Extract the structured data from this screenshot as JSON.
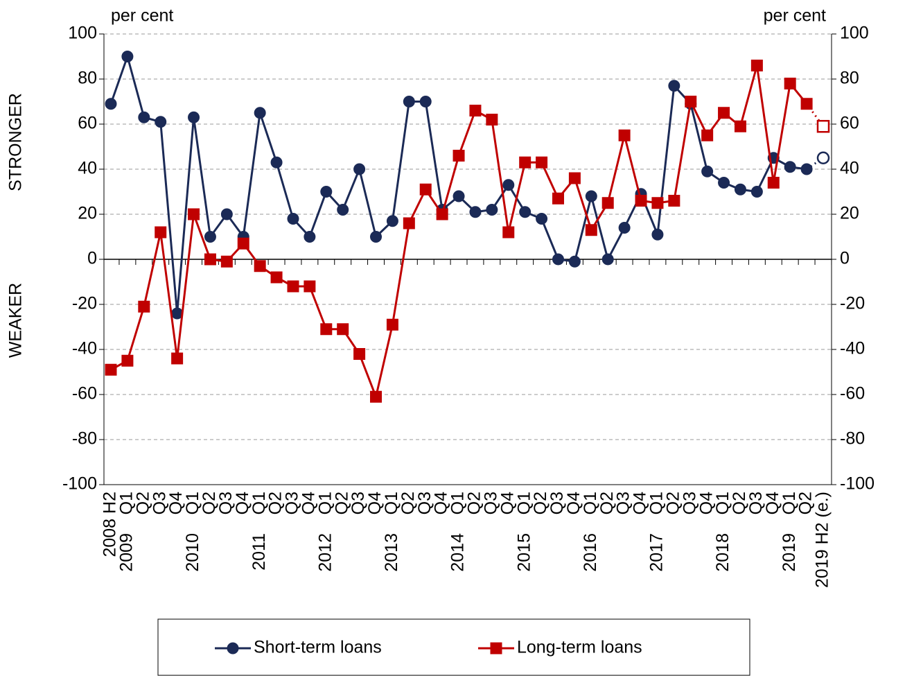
{
  "chart_data": {
    "type": "line",
    "y_label_upper": "STRONGER",
    "y_label_lower": "WEAKER",
    "y_unit_left": "per cent",
    "y_unit_right": "per cent",
    "categories": [
      "2008 H2",
      "Q1",
      "Q2",
      "Q3",
      "Q4",
      "Q1",
      "Q2",
      "Q3",
      "Q4",
      "Q1",
      "Q2",
      "Q3",
      "Q4",
      "Q1",
      "Q2",
      "Q3",
      "Q4",
      "Q1",
      "Q2",
      "Q3",
      "Q4",
      "Q1",
      "Q2",
      "Q3",
      "Q4",
      "Q1",
      "Q2",
      "Q3",
      "Q4",
      "Q1",
      "Q2",
      "Q3",
      "Q4",
      "Q1",
      "Q2",
      "Q3",
      "Q4",
      "Q1",
      "Q2",
      "Q3",
      "Q4",
      "Q1",
      "Q2",
      "2019 H2 (e.)"
    ],
    "category_years": [
      null,
      "2009",
      null,
      null,
      null,
      "2010",
      null,
      null,
      null,
      "2011",
      null,
      null,
      null,
      "2012",
      null,
      null,
      null,
      "2013",
      null,
      null,
      null,
      "2014",
      null,
      null,
      null,
      "2015",
      null,
      null,
      null,
      "2016",
      null,
      null,
      null,
      "2017",
      null,
      null,
      null,
      "2018",
      null,
      null,
      null,
      "2019",
      null,
      null
    ],
    "series": [
      {
        "name": "Short-term loans",
        "color": "#1b2a56",
        "marker": "circle",
        "values": [
          69,
          90,
          63,
          61,
          -24,
          63,
          10,
          20,
          10,
          65,
          43,
          18,
          10,
          30,
          22,
          40,
          10,
          17,
          70,
          70,
          22,
          28,
          21,
          22,
          33,
          21,
          18,
          0,
          -1,
          28,
          0,
          14,
          29,
          11,
          77,
          69,
          39,
          34,
          31,
          30,
          45,
          41,
          40,
          45
        ]
      },
      {
        "name": "Long-term loans",
        "color": "#c00000",
        "marker": "square",
        "values": [
          -49,
          -45,
          -21,
          12,
          -44,
          20,
          0,
          -1,
          7,
          -3,
          -8,
          -12,
          -12,
          -31,
          -31,
          -42,
          -61,
          -29,
          16,
          31,
          20,
          46,
          66,
          62,
          12,
          43,
          43,
          27,
          36,
          13,
          25,
          55,
          26,
          25,
          26,
          70,
          55,
          65,
          59,
          86,
          34,
          78,
          69,
          59
        ]
      }
    ],
    "ylim": [
      -100,
      100
    ],
    "yticks": [
      -100,
      -80,
      -60,
      -40,
      -20,
      0,
      20,
      40,
      60,
      80,
      100
    ],
    "y2lim": [
      -100,
      100
    ],
    "y2ticks": [
      -100,
      -80,
      -60,
      -40,
      -20,
      0,
      20,
      40,
      60,
      80,
      100
    ],
    "grid": true
  }
}
